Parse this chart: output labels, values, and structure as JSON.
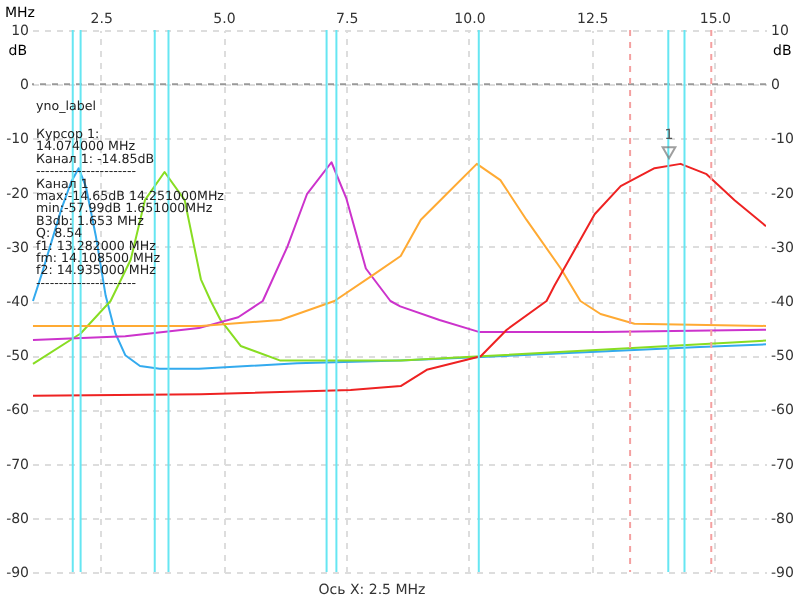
{
  "chart_data": {
    "type": "line",
    "xlabel": "MHz",
    "ylabel": "dB",
    "y2label": "dB",
    "xlim": [
      1.1,
      16.05
    ],
    "xticks": [
      {
        "value": 2.5,
        "label": "2.5"
      },
      {
        "value": 5,
        "label": "5.0"
      },
      {
        "value": 7.5,
        "label": "7.5"
      },
      {
        "value": 10,
        "label": "10.0"
      },
      {
        "value": 12.5,
        "label": "12.5"
      },
      {
        "value": 15,
        "label": "15.0"
      }
    ],
    "ylim": [
      -90,
      10
    ],
    "yticks": [
      -90,
      -80,
      -70,
      -60,
      -50,
      -40,
      -30,
      -20,
      -10,
      0,
      10
    ],
    "y2lim": [
      -90,
      10
    ],
    "y2ticks": [
      -90,
      -80,
      -70,
      -60,
      -50,
      -40,
      -30,
      -20,
      -10,
      0,
      10
    ],
    "grid": true,
    "series": [
      {
        "color": "#33aaee",
        "x": [
          1.12,
          1.3,
          1.5,
          1.7,
          1.9,
          2.05,
          2.2,
          2.4,
          2.6,
          2.8,
          3.0,
          3.3,
          3.7,
          4.5,
          6.5,
          8.6,
          10.6,
          12.7,
          14.7,
          16.05
        ],
        "values": [
          -40,
          -35,
          -29,
          -23,
          -18,
          -15.5,
          -19,
          -28,
          -39,
          -46,
          -50,
          -52,
          -52.5,
          -52.5,
          -51.5,
          -51,
          -50.2,
          -49.3,
          -48.5,
          -48
        ]
      },
      {
        "color": "#88dd22",
        "x": [
          1.12,
          2.09,
          2.7,
          3.11,
          3.4,
          3.8,
          4.21,
          4.54,
          4.74,
          4.94,
          5.35,
          6.16,
          8.61,
          10.24,
          12.68,
          14.72,
          16.05
        ],
        "values": [
          -51.6,
          -46,
          -40,
          -32.4,
          -21.4,
          -16.2,
          -21.4,
          -36,
          -40,
          -43.5,
          -48.3,
          -51,
          -51,
          -50.2,
          -49,
          -48,
          -47.3
        ]
      },
      {
        "color": "#cc33cc",
        "x": [
          1.12,
          3.0,
          4.5,
          5.3,
          5.8,
          6.3,
          6.7,
          7.2,
          7.5,
          7.9,
          8.4,
          8.6,
          9.4,
          10.2,
          12.7,
          16.05
        ],
        "values": [
          -47.2,
          -46.5,
          -45,
          -43,
          -40,
          -30,
          -20.3,
          -14.4,
          -21,
          -34,
          -40,
          -41,
          -43.5,
          -45.7,
          -45.7,
          -45.3
        ]
      },
      {
        "color": "#ffaa33",
        "x": [
          1.12,
          4.54,
          6.16,
          7.26,
          8.08,
          8.61,
          9.02,
          9.54,
          10.16,
          10.64,
          11.17,
          11.87,
          12.27,
          12.68,
          13.37,
          16.05
        ],
        "values": [
          -44.6,
          -44.6,
          -43.5,
          -40,
          -35,
          -31.7,
          -25,
          -20.3,
          -14.7,
          -17.7,
          -25,
          -34,
          -40,
          -42.4,
          -44.2,
          -44.6
        ]
      },
      {
        "color": "#ee2222",
        "x": [
          1.12,
          4.54,
          7.59,
          8.61,
          9.14,
          10.24,
          10.77,
          11.58,
          11.74,
          12.56,
          13.09,
          13.78,
          14.31,
          14.84,
          15.41,
          16.05
        ],
        "values": [
          -57.5,
          -57.2,
          -56.4,
          -55.7,
          -52.7,
          -50.2,
          -45.3,
          -40,
          -37.2,
          -24,
          -18.8,
          -15.5,
          -14.7,
          -16.6,
          -21.4,
          -26.2
        ]
      }
    ],
    "ref_lines": [
      {
        "axis": "y",
        "value": 0,
        "color": "#999999",
        "line_style": "dashed"
      },
      {
        "axis": "x",
        "value": 1.93,
        "color": "#66e6f2"
      },
      {
        "axis": "x",
        "value": 2.09,
        "color": "#66e6f2"
      },
      {
        "axis": "x",
        "value": 3.6,
        "color": "#66e6f2"
      },
      {
        "axis": "x",
        "value": 3.88,
        "color": "#66e6f2"
      },
      {
        "axis": "x",
        "value": 7.1,
        "color": "#66e6f2"
      },
      {
        "axis": "x",
        "value": 7.3,
        "color": "#66e6f2"
      },
      {
        "axis": "x",
        "value": 10.2,
        "color": "#66e6f2"
      },
      {
        "axis": "x",
        "value": 13.282,
        "color": "#f4a0a0",
        "line_style": "dashed"
      },
      {
        "axis": "x",
        "value": 14.06,
        "color": "#66e6f2"
      },
      {
        "axis": "x",
        "value": 14.39,
        "color": "#66e6f2"
      },
      {
        "axis": "x",
        "value": 14.935,
        "color": "#f4a0a0",
        "line_style": "dashed"
      }
    ],
    "annotations": [
      {
        "text": "1",
        "x": 14.074,
        "y": -14.85
      },
      "yno_label",
      "Курсор 1:",
      "14.074000 MHz",
      "Канал 1:  -14.85dB",
      "----------------------",
      "Канал 1",
      "max:-14.65dB 14.251000MHz",
      "min:-57.99dB 1.651000MHz",
      "B3db: 1.653 MHz",
      "Q: 8.54",
      "f1: 13.282000 MHz",
      "fm: 14.108500 MHz",
      "f2: 14.935000 MHz",
      "----------------------",
      "Ось X: 2.5 MHz"
    ]
  }
}
